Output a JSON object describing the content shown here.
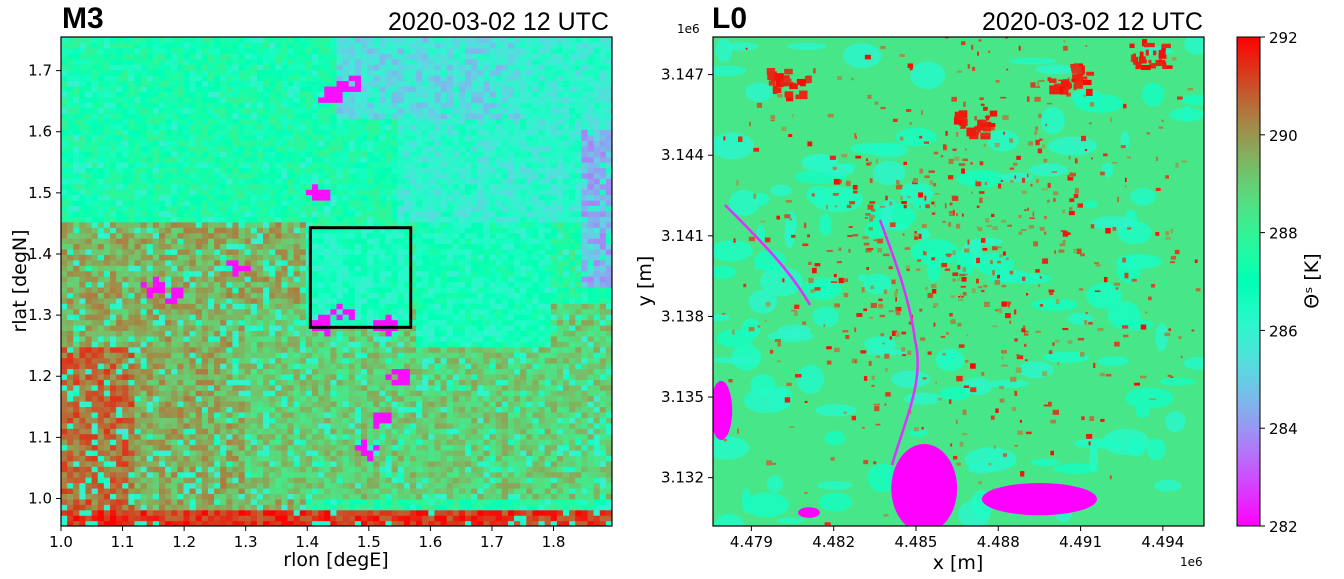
{
  "chart_data": [
    {
      "type": "heatmap",
      "panel": "M3",
      "title": "M3",
      "time_label": "2020-03-02 12 UTC",
      "xlabel": "rlon [degE]",
      "ylabel": "rlat [degN]",
      "xlim": [
        1.0,
        1.895
      ],
      "ylim": [
        0.955,
        1.755
      ],
      "xticks": [
        1.0,
        1.1,
        1.2,
        1.3,
        1.4,
        1.5,
        1.6,
        1.7,
        1.8
      ],
      "xtick_labels": [
        "1.0",
        "1.1",
        "1.2",
        "1.3",
        "1.4",
        "1.5",
        "1.6",
        "1.7",
        "1.8"
      ],
      "yticks": [
        1.0,
        1.1,
        1.2,
        1.3,
        1.4,
        1.5,
        1.6,
        1.7
      ],
      "ytick_labels": [
        "1.0",
        "1.1",
        "1.2",
        "1.3",
        "1.4",
        "1.5",
        "1.6",
        "1.7"
      ],
      "highlight_box": {
        "x": [
          1.405,
          1.568
        ],
        "y": [
          1.28,
          1.443
        ]
      },
      "background_value": 287.6,
      "regions": [
        {
          "x": [
            1.0,
            1.895
          ],
          "y": [
            1.45,
            1.755
          ],
          "value": 287.3
        },
        {
          "x": [
            1.55,
            1.895
          ],
          "y": [
            1.45,
            1.755
          ],
          "value": 286.0
        },
        {
          "x": [
            1.45,
            1.75
          ],
          "y": [
            1.62,
            1.755
          ],
          "value": 285.3
        },
        {
          "x": [
            1.85,
            1.895
          ],
          "y": [
            1.35,
            1.6
          ],
          "value": 284.5
        },
        {
          "x": [
            1.0,
            1.4
          ],
          "y": [
            0.955,
            1.45
          ],
          "value": 289.6
        },
        {
          "x": [
            1.0,
            1.12
          ],
          "y": [
            0.955,
            1.25
          ],
          "value": 290.6
        },
        {
          "x": [
            1.0,
            1.895
          ],
          "y": [
            0.955,
            0.985
          ],
          "value": 291.4
        },
        {
          "x": [
            1.3,
            1.895
          ],
          "y": [
            1.0,
            1.32
          ],
          "value": 289.0
        },
        {
          "x": [
            1.4,
            1.568
          ],
          "y": [
            1.28,
            1.443
          ],
          "value": 286.6
        },
        {
          "x": [
            1.58,
            1.8
          ],
          "y": [
            1.25,
            1.45
          ],
          "value": 286.8
        }
      ],
      "min_spots": [
        {
          "x": 1.47,
          "y": 1.68
        },
        {
          "x": 1.44,
          "y": 1.66
        },
        {
          "x": 1.15,
          "y": 1.345
        },
        {
          "x": 1.18,
          "y": 1.335
        },
        {
          "x": 1.46,
          "y": 1.305
        },
        {
          "x": 1.43,
          "y": 1.285
        },
        {
          "x": 1.53,
          "y": 1.285
        },
        {
          "x": 1.55,
          "y": 1.2
        },
        {
          "x": 1.52,
          "y": 1.13
        },
        {
          "x": 1.5,
          "y": 1.08
        },
        {
          "x": 1.29,
          "y": 1.38
        },
        {
          "x": 1.42,
          "y": 1.5
        }
      ]
    },
    {
      "type": "heatmap",
      "panel": "L0",
      "title": "L0",
      "time_label": "2020-03-02 12 UTC",
      "xlabel": "x [m]",
      "ylabel": "y [m]",
      "x_offset": "1e6",
      "y_offset": "1e6",
      "xlim": [
        4.4776,
        4.4955
      ],
      "ylim": [
        3.1302,
        3.1484
      ],
      "xticks": [
        4.479,
        4.482,
        4.485,
        4.488,
        4.491,
        4.494
      ],
      "xtick_labels": [
        "4.479",
        "4.482",
        "4.485",
        "4.488",
        "4.491",
        "4.494"
      ],
      "yticks": [
        3.132,
        3.135,
        3.138,
        3.141,
        3.144,
        3.147
      ],
      "ytick_labels": [
        "3.132",
        "3.135",
        "3.138",
        "3.141",
        "3.144",
        "3.147"
      ],
      "background_value": 288.4,
      "lakes": [
        {
          "x": 4.4853,
          "y": 3.1316,
          "rx": 0.0012,
          "ry": 0.00165
        },
        {
          "x": 4.4895,
          "y": 3.1312,
          "rx": 0.0021,
          "ry": 0.0006
        },
        {
          "x": 4.4779,
          "y": 3.1345,
          "rx": 0.0004,
          "ry": 0.0011
        },
        {
          "x": 4.4811,
          "y": 3.1307,
          "rx": 0.0004,
          "ry": 0.0002
        }
      ]
    }
  ],
  "colorbar": {
    "label": "Θˢ [K]",
    "min": 282,
    "max": 292,
    "ticks": [
      282,
      284,
      286,
      288,
      290,
      292
    ],
    "tick_labels": [
      "282",
      "284",
      "286",
      "288",
      "290",
      "292"
    ],
    "colormap": "rainbow"
  }
}
